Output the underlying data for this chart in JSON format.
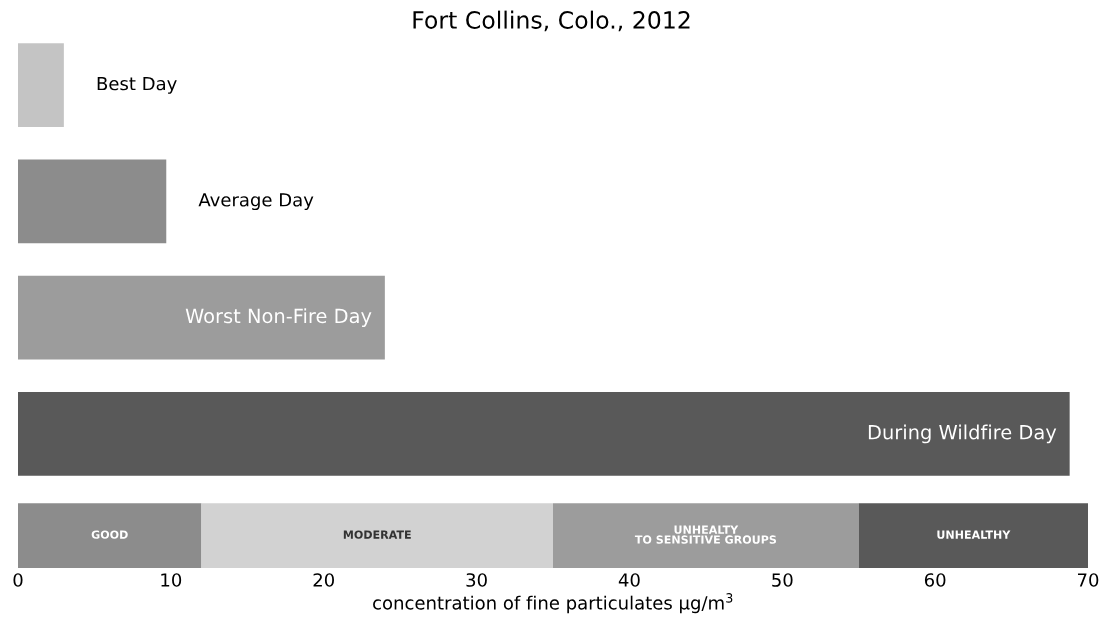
{
  "chart_data": [
    {
      "type": "bar",
      "orientation": "horizontal",
      "title": "Fort Collins, Colo., 2012",
      "categories": [
        "Best Day",
        "Average Day",
        "Worst Non-Fire Day",
        "During Wildfire Day"
      ],
      "values": [
        3,
        9.7,
        24,
        68.8
      ],
      "colors": [
        "#c4c4c4",
        "#8c8c8c",
        "#9c9c9c",
        "#595959"
      ],
      "xlim": [
        0,
        70
      ],
      "tick_labels": false
    },
    {
      "type": "bar",
      "orientation": "horizontal",
      "stacked": true,
      "categories": [
        null
      ],
      "series": [
        {
          "name": "GOOD",
          "color": "#8c8c8c",
          "values": [
            12
          ]
        },
        {
          "name": "MODERATE",
          "color": "#d2d2d2",
          "values": [
            23
          ]
        },
        {
          "name": "UNHEALTY\nTO SENSITIVE GROUPS",
          "color": "#9c9c9c",
          "values": [
            20
          ]
        },
        {
          "name": "UNHEALTHY",
          "color": "#595959",
          "values": [
            15
          ]
        }
      ],
      "xlabel": "concentration of fine particulates μg/m$^{3}$",
      "xlim": [
        0,
        70
      ],
      "xticks": [
        0,
        10,
        20,
        30,
        40,
        50,
        60,
        70
      ],
      "tick_labels": "x"
    }
  ]
}
